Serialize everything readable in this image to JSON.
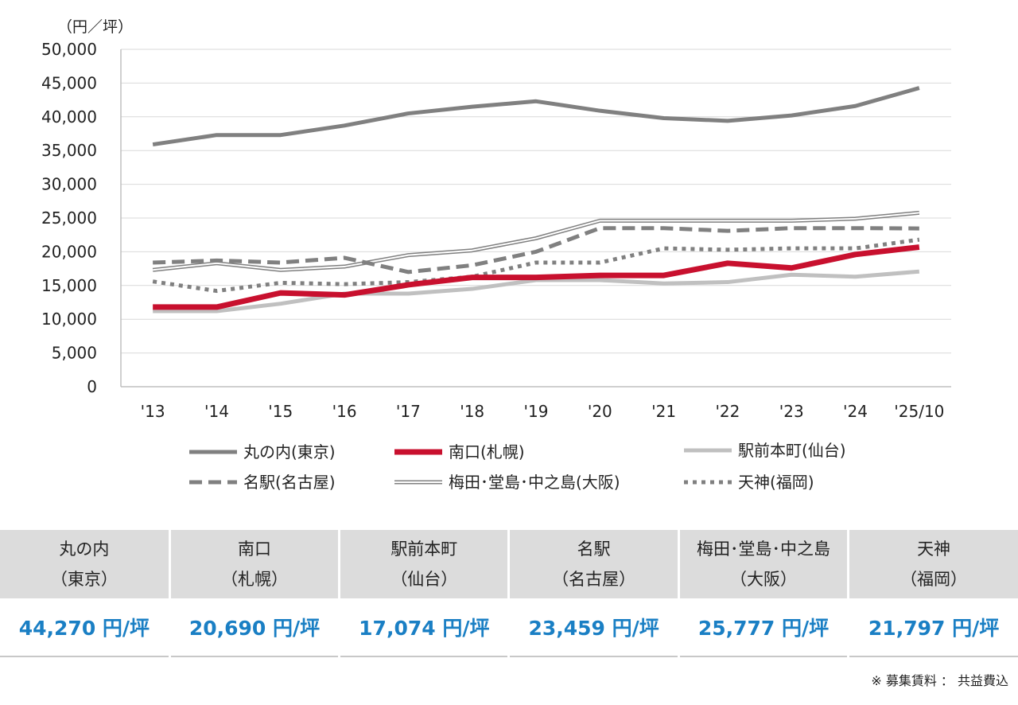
{
  "chart_data": {
    "type": "line",
    "unit_label": "（円／坪）",
    "categories": [
      "'13",
      "'14",
      "'15",
      "'16",
      "'17",
      "'18",
      "'19",
      "'20",
      "'21",
      "'22",
      "'23",
      "'24",
      "'25/10"
    ],
    "ylim": [
      0,
      50000
    ],
    "y_ticks": [
      "0",
      "5,000",
      "10,000",
      "15,000",
      "20,000",
      "25,000",
      "30,000",
      "35,000",
      "40,000",
      "45,000",
      "50,000"
    ],
    "grid": true,
    "legend_position": "bottom",
    "series": [
      {
        "name": "丸の内(東京)",
        "color": "#808080",
        "style": "solid-thick",
        "values": [
          35900,
          37300,
          37300,
          38700,
          40500,
          41500,
          42300,
          40900,
          39800,
          39400,
          40200,
          41600,
          44270
        ]
      },
      {
        "name": "南口(札幌)",
        "color": "#c8102e",
        "style": "solid-bold",
        "values": [
          11800,
          11800,
          13900,
          13600,
          15100,
          16200,
          16200,
          16500,
          16500,
          18300,
          17600,
          19600,
          20690
        ]
      },
      {
        "name": "駅前本町(仙台)",
        "color": "#c0c0c0",
        "style": "solid-light",
        "values": [
          11200,
          11200,
          12300,
          13800,
          13800,
          14500,
          15800,
          15800,
          15300,
          15500,
          16600,
          16300,
          17074
        ]
      },
      {
        "name": "名駅(名古屋)",
        "color": "#808080",
        "style": "dashed",
        "values": [
          18400,
          18700,
          18400,
          19100,
          17000,
          18000,
          20000,
          23500,
          23500,
          23100,
          23500,
          23500,
          23459
        ]
      },
      {
        "name": "梅田･堂島･中之島(大阪)",
        "color": "#808080",
        "style": "double",
        "values": [
          17300,
          18300,
          17300,
          17800,
          19500,
          20200,
          22000,
          24600,
          24600,
          24600,
          24600,
          24900,
          25777
        ]
      },
      {
        "name": "天神(福岡)",
        "color": "#808080",
        "style": "dotted",
        "values": [
          15600,
          14200,
          15400,
          15200,
          15500,
          16300,
          18400,
          18400,
          20500,
          20300,
          20500,
          20500,
          21797
        ]
      }
    ]
  },
  "summary_table": [
    {
      "line1": "丸の内",
      "line2": "（東京）",
      "value": "44,270 円/坪"
    },
    {
      "line1": "南口",
      "line2": "（札幌）",
      "value": "20,690 円/坪"
    },
    {
      "line1": "駅前本町",
      "line2": "（仙台）",
      "value": "17,074 円/坪"
    },
    {
      "line1": "名駅",
      "line2": "（名古屋）",
      "value": "23,459 円/坪"
    },
    {
      "line1": "梅田･堂島･中之島",
      "line2": "（大阪）",
      "value": "25,777 円/坪"
    },
    {
      "line1": "天神",
      "line2": "（福岡）",
      "value": "21,797 円/坪"
    }
  ],
  "footnote": "※ 募集賃料 ： 共益費込"
}
